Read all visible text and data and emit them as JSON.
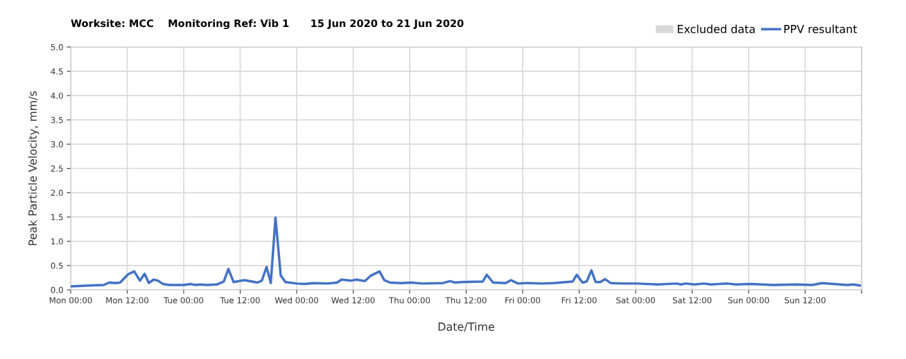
{
  "chart_data": {
    "type": "line",
    "title": "Worksite: MCC    Monitoring Ref: Vib 1      15 Jun 2020 to 21 Jun 2020",
    "xlabel": "Date/Time",
    "ylabel": "Peak Particle Velocity, mm/s",
    "legend": "top right",
    "grid": true,
    "xlim": [
      "2020-06-15T00:00",
      "2020-06-22T00:00"
    ],
    "xticks": [
      {
        "value": "2020-06-15T00:00",
        "label": "Mon 00:00"
      },
      {
        "value": "2020-06-15T12:00",
        "label": "Mon 12:00"
      },
      {
        "value": "2020-06-16T00:00",
        "label": "Tue 00:00"
      },
      {
        "value": "2020-06-16T12:00",
        "label": "Tue 12:00"
      },
      {
        "value": "2020-06-17T00:00",
        "label": "Wed 00:00"
      },
      {
        "value": "2020-06-17T12:00",
        "label": "Wed 12:00"
      },
      {
        "value": "2020-06-18T00:00",
        "label": "Thu 00:00"
      },
      {
        "value": "2020-06-18T12:00",
        "label": "Thu 12:00"
      },
      {
        "value": "2020-06-19T00:00",
        "label": "Fri 00:00"
      },
      {
        "value": "2020-06-19T12:00",
        "label": "Fri 12:00"
      },
      {
        "value": "2020-06-20T00:00",
        "label": "Sat 00:00"
      },
      {
        "value": "2020-06-20T12:00",
        "label": "Sat 12:00"
      },
      {
        "value": "2020-06-21T00:00",
        "label": "Sun 00:00"
      },
      {
        "value": "2020-06-21T12:00",
        "label": "Sun 12:00"
      },
      {
        "value": "2020-06-22T00:00",
        "label": null
      }
    ],
    "ylim": [
      0,
      5
    ],
    "yticks": [
      {
        "value": 0,
        "label": "0.0"
      },
      0.5,
      {
        "value": 1,
        "label": "1.0"
      },
      1.5,
      {
        "value": 2,
        "label": "2.0"
      },
      2.5,
      {
        "value": 3,
        "label": "3.0"
      },
      3.5,
      {
        "value": 4,
        "label": "4.0"
      },
      4.5,
      {
        "value": 5,
        "label": "5.0"
      }
    ],
    "series": [
      {
        "name": "Excluded data",
        "type": "area",
        "color": "#d9d9d9"
      },
      {
        "name": "PPV resultant",
        "color": "#4472c4",
        "x": [
          "2020-06-15T00:00",
          "2020-06-15T04:00",
          "2020-06-15T07:00",
          "2020-06-15T08:12",
          "2020-06-15T09:30",
          "2020-06-15T10:30",
          "2020-06-15T12:12",
          "2020-06-15T13:30",
          "2020-06-15T14:42",
          "2020-06-15T15:42",
          "2020-06-15T16:36",
          "2020-06-15T17:36",
          "2020-06-15T18:30",
          "2020-06-15T19:36",
          "2020-06-15T21:00",
          "2020-06-16T00:00",
          "2020-06-16T01:30",
          "2020-06-16T02:30",
          "2020-06-16T03:30",
          "2020-06-16T05:00",
          "2020-06-16T07:00",
          "2020-06-16T08:30",
          "2020-06-16T09:30",
          "2020-06-16T10:36",
          "2020-06-16T12:54",
          "2020-06-16T15:42",
          "2020-06-16T16:36",
          "2020-06-16T17:36",
          "2020-06-16T18:30",
          "2020-06-16T19:30",
          "2020-06-16T20:36",
          "2020-06-16T21:36",
          "2020-06-17T00:00",
          "2020-06-17T01:42",
          "2020-06-17T03:36",
          "2020-06-17T06:36",
          "2020-06-17T08:36",
          "2020-06-17T09:30",
          "2020-06-17T11:36",
          "2020-06-17T12:42",
          "2020-06-17T14:30",
          "2020-06-17T15:42",
          "2020-06-17T17:36",
          "2020-06-17T18:36",
          "2020-06-17T19:48",
          "2020-06-17T22:18",
          "2020-06-18T00:12",
          "2020-06-18T02:42",
          "2020-06-18T07:06",
          "2020-06-18T08:36",
          "2020-06-18T09:36",
          "2020-06-18T11:06",
          "2020-06-18T15:30",
          "2020-06-18T16:24",
          "2020-06-18T17:42",
          "2020-06-18T20:24",
          "2020-06-18T21:30",
          "2020-06-18T23:00",
          "2020-06-19T00:48",
          "2020-06-19T04:06",
          "2020-06-19T06:36",
          "2020-06-19T10:36",
          "2020-06-19T11:30",
          "2020-06-19T12:42",
          "2020-06-19T13:36",
          "2020-06-19T14:36",
          "2020-06-19T15:30",
          "2020-06-19T16:30",
          "2020-06-19T17:30",
          "2020-06-19T18:42",
          "2020-06-19T21:24",
          "2020-06-20T00:18",
          "2020-06-20T04:42",
          "2020-06-20T08:42",
          "2020-06-20T09:36",
          "2020-06-20T10:36",
          "2020-06-20T12:30",
          "2020-06-20T14:30",
          "2020-06-20T16:00",
          "2020-06-20T19:24",
          "2020-06-20T21:18",
          "2020-06-21T00:18",
          "2020-06-21T05:18",
          "2020-06-21T10:06",
          "2020-06-21T13:30",
          "2020-06-21T15:36",
          "2020-06-21T17:54",
          "2020-06-21T20:54",
          "2020-06-21T22:18",
          "2020-06-21T23:36"
        ],
        "values": [
          0.07,
          0.09,
          0.1,
          0.15,
          0.14,
          0.15,
          0.32,
          0.38,
          0.19,
          0.33,
          0.14,
          0.21,
          0.19,
          0.12,
          0.1,
          0.1,
          0.12,
          0.1,
          0.11,
          0.1,
          0.11,
          0.17,
          0.43,
          0.16,
          0.2,
          0.15,
          0.19,
          0.47,
          0.14,
          1.49,
          0.3,
          0.16,
          0.13,
          0.12,
          0.14,
          0.13,
          0.15,
          0.21,
          0.19,
          0.21,
          0.18,
          0.29,
          0.38,
          0.2,
          0.15,
          0.14,
          0.15,
          0.13,
          0.14,
          0.18,
          0.15,
          0.16,
          0.17,
          0.31,
          0.15,
          0.14,
          0.2,
          0.13,
          0.14,
          0.13,
          0.14,
          0.17,
          0.31,
          0.15,
          0.17,
          0.4,
          0.16,
          0.16,
          0.22,
          0.14,
          0.13,
          0.13,
          0.11,
          0.13,
          0.11,
          0.13,
          0.11,
          0.13,
          0.11,
          0.13,
          0.11,
          0.12,
          0.1,
          0.11,
          0.1,
          0.14,
          0.12,
          0.1,
          0.11,
          0.09
        ]
      }
    ]
  }
}
